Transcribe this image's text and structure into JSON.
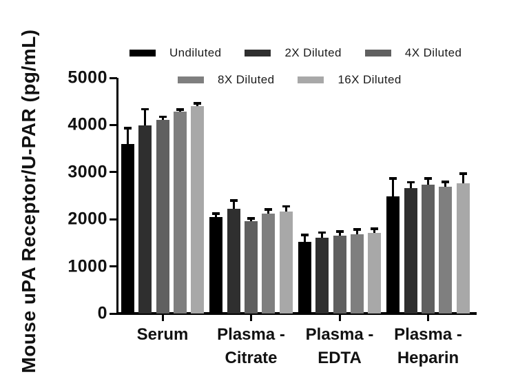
{
  "chart_data": {
    "type": "bar",
    "title": "",
    "xlabel": "",
    "ylabel": "Mouse uPA Receptor/U-PAR (pg/mL)",
    "ylim": [
      0,
      5000
    ],
    "yticks": [
      0,
      1000,
      2000,
      3000,
      4000,
      5000
    ],
    "grid": false,
    "legend_position": "top",
    "legend_rows": [
      [
        "Undiluted",
        "2X Diluted",
        "4X Diluted"
      ],
      [
        "8X Diluted",
        "16X Diluted"
      ]
    ],
    "categories": [
      "Serum",
      "Plasma - Citrate",
      "Plasma - EDTA",
      "Plasma - Heparin"
    ],
    "categories_lines": [
      [
        "Serum"
      ],
      [
        "Plasma -",
        "Citrate"
      ],
      [
        "Plasma -",
        "EDTA"
      ],
      [
        "Plasma -",
        "Heparin"
      ]
    ],
    "series": [
      {
        "name": "Undiluted",
        "color": "#000000",
        "values": [
          3600,
          2050,
          1520,
          2490
        ],
        "errors": [
          340,
          70,
          150,
          380
        ]
      },
      {
        "name": "2X Diluted",
        "color": "#2f2f2f",
        "values": [
          3990,
          2220,
          1610,
          2655
        ],
        "errors": [
          350,
          180,
          110,
          135
        ]
      },
      {
        "name": "4X Diluted",
        "color": "#606060",
        "values": [
          4110,
          1960,
          1655,
          2740
        ],
        "errors": [
          70,
          60,
          85,
          130
        ]
      },
      {
        "name": "8X Diluted",
        "color": "#7f7f7f",
        "values": [
          4280,
          2120,
          1680,
          2695
        ],
        "errors": [
          50,
          90,
          105,
          100
        ]
      },
      {
        "name": "16X Diluted",
        "color": "#a8a8a8",
        "values": [
          4400,
          2170,
          1705,
          2760
        ],
        "errors": [
          65,
          105,
          95,
          210
        ]
      }
    ],
    "error_bar_color": "#000000"
  }
}
